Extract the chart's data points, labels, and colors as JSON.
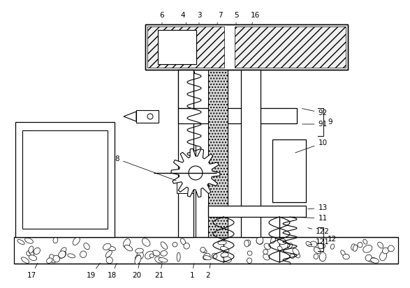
{
  "bg_color": "#ffffff",
  "fig_width": 5.87,
  "fig_height": 4.13,
  "dpi": 100
}
